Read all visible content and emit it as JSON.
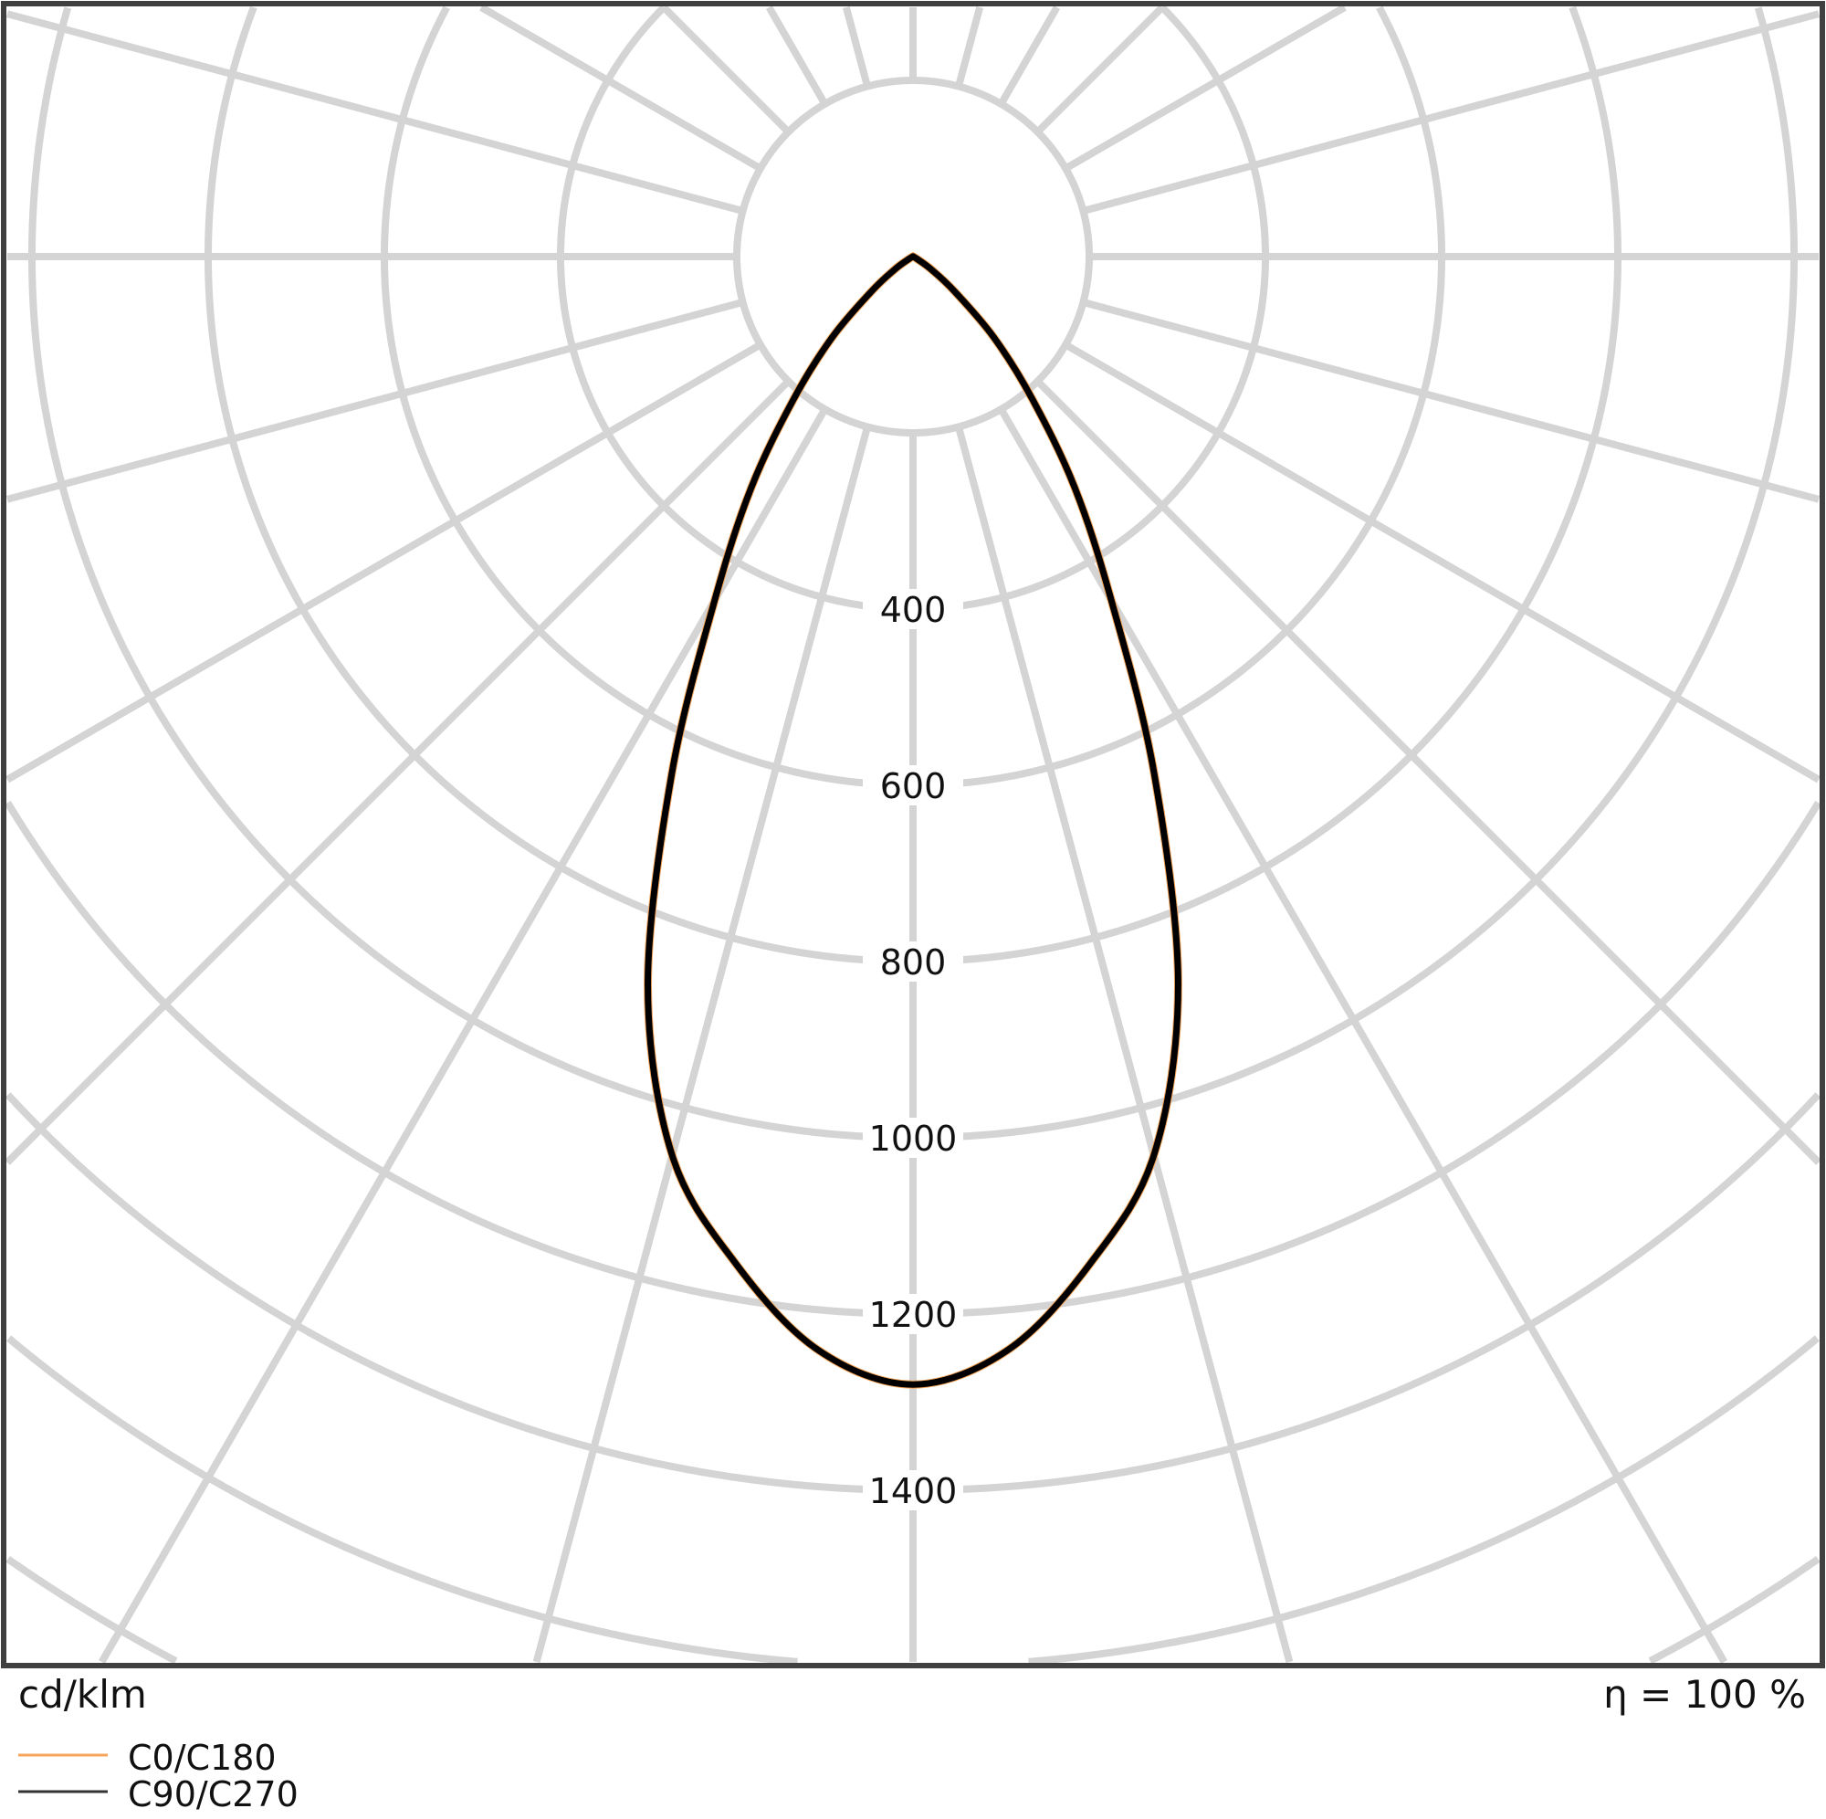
{
  "chart_data": {
    "type": "polar",
    "title": "",
    "unit_label": "cd/klm",
    "efficiency_label": "η = 100 %",
    "radial_tick_labels": [
      "400",
      "600",
      "800",
      "1000",
      "1200",
      "1400"
    ],
    "radial_ticks": [
      400,
      600,
      800,
      1000,
      1200,
      1400
    ],
    "radial_grid_step": 200,
    "angular_grid_step_deg": 15,
    "grid": true,
    "legend_placement": "bottom-left",
    "series": [
      {
        "name": "C0/C180",
        "color": "#f5a65b",
        "gamma_deg": [
          0,
          5,
          10,
          15,
          20,
          25,
          30,
          35,
          40,
          45,
          50,
          55,
          60,
          65,
          90
        ],
        "intensity": [
          1280,
          1245,
          1160,
          1056,
          880,
          648,
          450,
          320,
          210,
          130,
          62,
          25,
          5,
          0,
          0
        ]
      },
      {
        "name": "C90/C270",
        "color": "#000000",
        "gamma_deg": [
          0,
          5,
          10,
          15,
          20,
          25,
          30,
          35,
          40,
          45,
          50,
          55,
          60,
          65,
          90
        ],
        "intensity": [
          1280,
          1245,
          1160,
          1056,
          880,
          648,
          450,
          320,
          210,
          130,
          62,
          25,
          5,
          0,
          0
        ]
      }
    ]
  }
}
